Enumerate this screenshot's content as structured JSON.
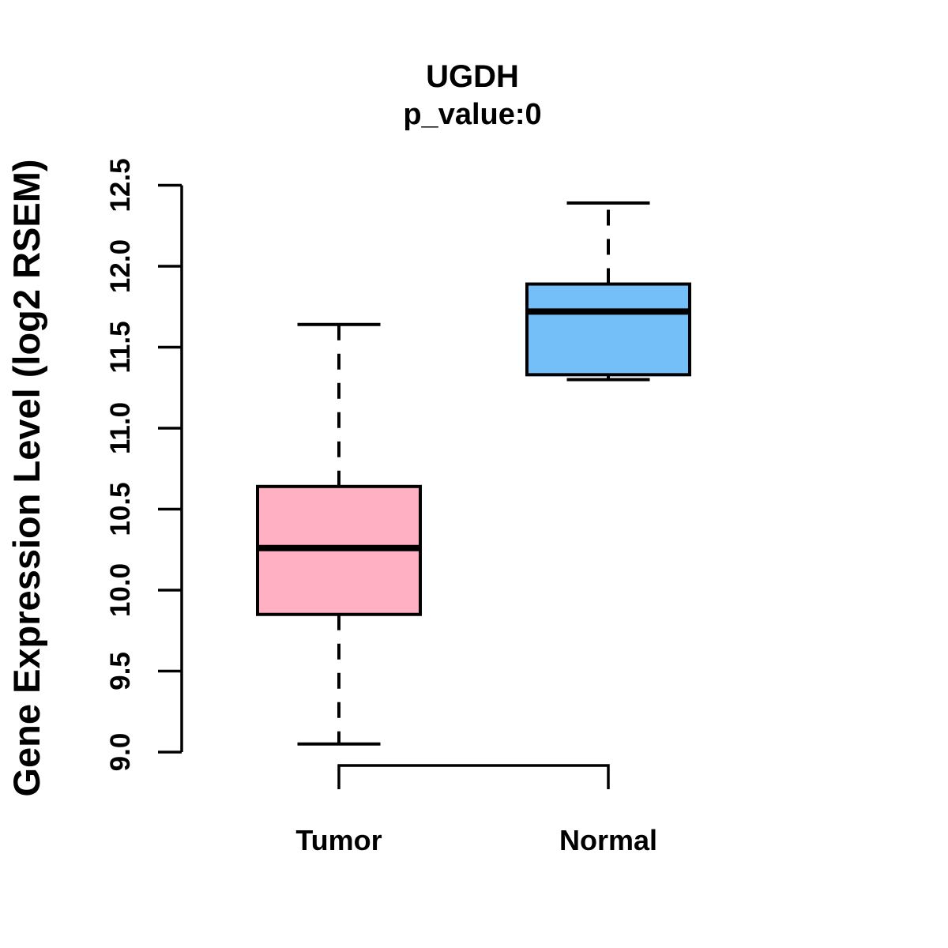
{
  "chart_data": {
    "type": "boxplot",
    "title": "UGDH",
    "subtitle": "p_value:0",
    "ylabel": "Gene Expression Level (log2 RSEM)",
    "xlabel": "",
    "ylim": [
      9.0,
      12.5
    ],
    "ytick_values": [
      9.0,
      9.5,
      10.0,
      10.5,
      11.0,
      11.5,
      12.0,
      12.5
    ],
    "ytick_labels": [
      "9.0",
      "9.5",
      "10.0",
      "10.5",
      "11.0",
      "11.5",
      "12.0",
      "12.5"
    ],
    "categories": [
      "Tumor",
      "Normal"
    ],
    "series": [
      {
        "name": "Tumor",
        "whisker_low": 9.05,
        "q1": 9.85,
        "median": 10.26,
        "q3": 10.64,
        "whisker_high": 11.64,
        "fill_color": "#FFB0C3"
      },
      {
        "name": "Normal",
        "whisker_low": 11.3,
        "q1": 11.33,
        "median": 11.72,
        "q3": 11.89,
        "whisker_high": 12.39,
        "fill_color": "#74BFF8"
      }
    ],
    "grid": false,
    "legend": "none",
    "stroke_color": "#000000",
    "background_color": "#FFFFFF"
  }
}
